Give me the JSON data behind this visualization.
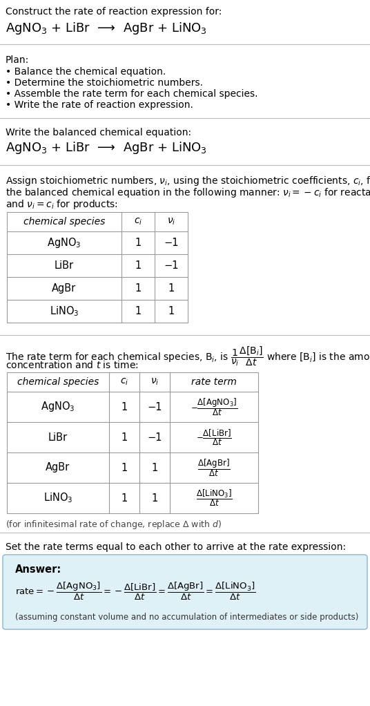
{
  "title_line1": "Construct the rate of reaction expression for:",
  "title_line2": "AgNO$_3$ + LiBr  ⟶  AgBr + LiNO$_3$",
  "plan_header": "Plan:",
  "plan_items": [
    "• Balance the chemical equation.",
    "• Determine the stoichiometric numbers.",
    "• Assemble the rate term for each chemical species.",
    "• Write the rate of reaction expression."
  ],
  "balanced_eq_header": "Write the balanced chemical equation:",
  "balanced_eq": "AgNO$_3$ + LiBr  ⟶  AgBr + LiNO$_3$",
  "stoich_intro1": "Assign stoichiometric numbers, $\\nu_i$, using the stoichiometric coefficients, $c_i$, from",
  "stoich_intro2": "the balanced chemical equation in the following manner: $\\nu_i = -c_i$ for reactants",
  "stoich_intro3": "and $\\nu_i = c_i$ for products:",
  "table1_headers": [
    "chemical species",
    "$c_i$",
    "$\\nu_i$"
  ],
  "table1_rows": [
    [
      "AgNO$_3$",
      "1",
      "−1"
    ],
    [
      "LiBr",
      "1",
      "−1"
    ],
    [
      "AgBr",
      "1",
      "1"
    ],
    [
      "LiNO$_3$",
      "1",
      "1"
    ]
  ],
  "rate_intro1": "The rate term for each chemical species, B$_i$, is $\\dfrac{1}{\\nu_i}\\dfrac{\\Delta[\\mathrm{B}_i]}{\\Delta t}$ where [B$_i$] is the amount",
  "rate_intro2": "concentration and $t$ is time:",
  "table2_headers": [
    "chemical species",
    "$c_i$",
    "$\\nu_i$",
    "rate term"
  ],
  "table2_rows": [
    [
      "AgNO$_3$",
      "1",
      "−1",
      "$-\\dfrac{\\Delta[\\mathrm{AgNO_3}]}{\\Delta t}$"
    ],
    [
      "LiBr",
      "1",
      "−1",
      "$-\\dfrac{\\Delta[\\mathrm{LiBr}]}{\\Delta t}$"
    ],
    [
      "AgBr",
      "1",
      "1",
      "$\\dfrac{\\Delta[\\mathrm{AgBr}]}{\\Delta t}$"
    ],
    [
      "LiNO$_3$",
      "1",
      "1",
      "$\\dfrac{\\Delta[\\mathrm{LiNO_3}]}{\\Delta t}$"
    ]
  ],
  "infinitesimal_note": "(for infinitesimal rate of change, replace Δ with $d$)",
  "rate_expr_intro": "Set the rate terms equal to each other to arrive at the rate expression:",
  "answer_label": "Answer:",
  "rate_expr": "$\\mathrm{rate} = -\\dfrac{\\Delta[\\mathrm{AgNO_3}]}{\\Delta t} = -\\dfrac{\\Delta[\\mathrm{LiBr}]}{\\Delta t} = \\dfrac{\\Delta[\\mathrm{AgBr}]}{\\Delta t} = \\dfrac{\\Delta[\\mathrm{LiNO_3}]}{\\Delta t}$",
  "answer_note": "(assuming constant volume and no accumulation of intermediates or side products)",
  "bg_color": "#ffffff",
  "answer_bg_color": "#dff0f7",
  "answer_border_color": "#9bbfcf",
  "text_color": "#000000",
  "separator_color": "#bbbbbb",
  "table_border_color": "#999999"
}
